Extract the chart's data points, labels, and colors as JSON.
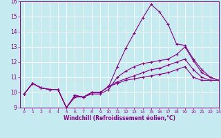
{
  "xlabel": "Windchill (Refroidissement éolien,°C)",
  "xlim": [
    -0.5,
    23
  ],
  "ylim": [
    9,
    16
  ],
  "xticks": [
    0,
    1,
    2,
    3,
    4,
    5,
    6,
    7,
    8,
    9,
    10,
    11,
    12,
    13,
    14,
    15,
    16,
    17,
    18,
    19,
    20,
    21,
    22,
    23
  ],
  "yticks": [
    9,
    10,
    11,
    12,
    13,
    14,
    15,
    16
  ],
  "bg_color": "#c5eaf0",
  "grid_color": "#ffffff",
  "line_color": "#880088",
  "line1": [
    9.9,
    10.6,
    10.3,
    10.2,
    10.2,
    9.0,
    9.8,
    9.7,
    10.0,
    10.0,
    10.4,
    11.7,
    12.9,
    13.9,
    14.9,
    15.8,
    15.3,
    14.5,
    13.2,
    13.1,
    12.2,
    11.5,
    11.0,
    10.8
  ],
  "line2": [
    9.9,
    10.6,
    10.3,
    10.2,
    10.2,
    9.0,
    9.7,
    9.7,
    9.9,
    9.9,
    10.2,
    11.0,
    11.4,
    11.7,
    11.9,
    12.0,
    12.1,
    12.2,
    12.5,
    13.0,
    12.1,
    11.3,
    11.0,
    10.8
  ],
  "line3": [
    9.9,
    10.6,
    10.3,
    10.2,
    10.2,
    9.0,
    9.8,
    9.7,
    10.0,
    10.0,
    10.4,
    10.7,
    10.9,
    11.1,
    11.3,
    11.5,
    11.6,
    11.8,
    12.0,
    12.2,
    11.5,
    11.0,
    10.8,
    10.8
  ],
  "line4": [
    9.9,
    10.6,
    10.3,
    10.2,
    10.2,
    9.0,
    9.8,
    9.7,
    10.0,
    10.0,
    10.4,
    10.6,
    10.8,
    10.9,
    11.0,
    11.1,
    11.2,
    11.3,
    11.5,
    11.7,
    11.0,
    10.8,
    10.8,
    10.8
  ]
}
